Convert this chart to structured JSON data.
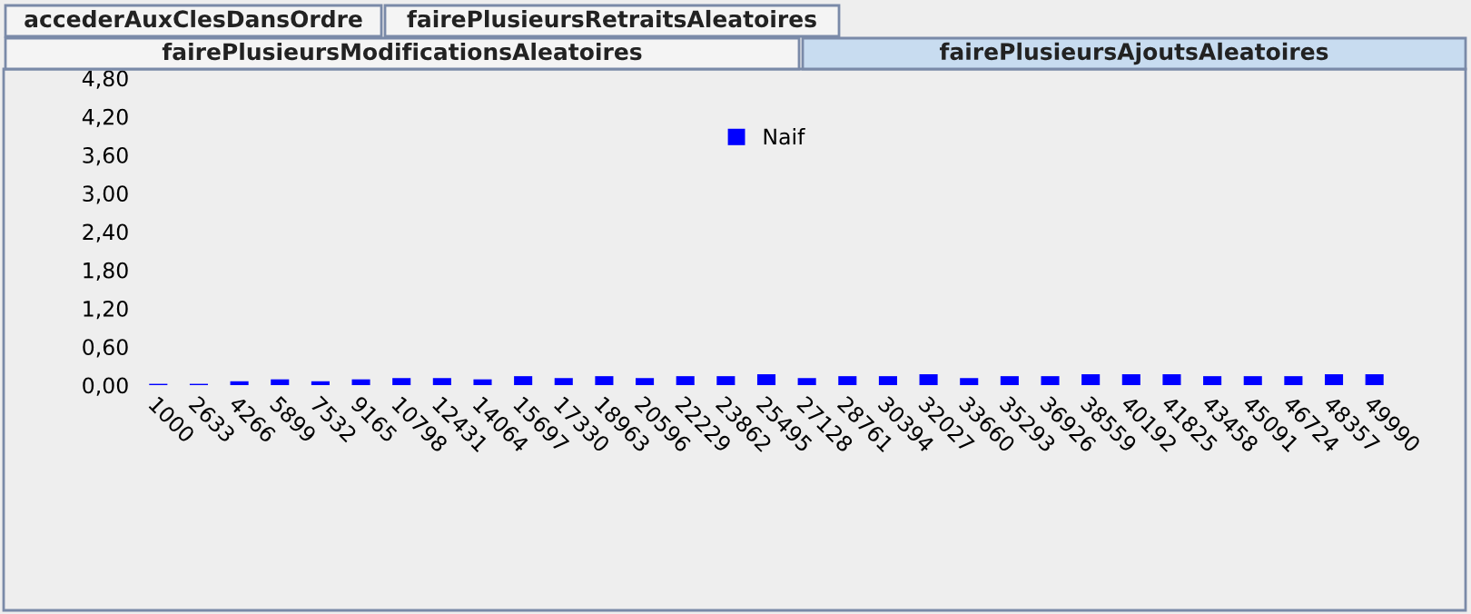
{
  "chart_data": {
    "type": "bar",
    "annotations": [
      "accederAuxClesDansOrdre",
      "fairePlusieursRetraitsAleatoires",
      "fairePlusieursModificationsAleatoires",
      "fairePlusieursAjoutsAleatoires"
    ],
    "categories": [
      "1000",
      "2633",
      "4266",
      "5899",
      "7532",
      "9165",
      "10798",
      "12431",
      "14064",
      "15697",
      "17330",
      "18963",
      "20596",
      "22229",
      "23862",
      "25495",
      "27128",
      "28761",
      "30394",
      "32027",
      "33660",
      "35293",
      "36926",
      "38559",
      "40192",
      "41825",
      "43458",
      "45091",
      "46724",
      "48357",
      "49990"
    ],
    "series": [
      {
        "name": "Naif",
        "color": "#0000ff",
        "values": [
          0.02,
          0.02,
          0.06,
          0.09,
          0.06,
          0.09,
          0.11,
          0.11,
          0.09,
          0.14,
          0.11,
          0.14,
          0.11,
          0.14,
          0.14,
          0.17,
          0.11,
          0.14,
          0.14,
          0.17,
          0.11,
          0.14,
          0.14,
          0.17,
          0.17,
          0.17,
          0.14,
          0.14,
          0.14,
          0.17,
          0.17
        ]
      }
    ],
    "ylim": [
      0,
      4.8
    ],
    "yticks": [
      {
        "value": 0,
        "label": "0,00"
      },
      {
        "value": 0.6,
        "label": "0,60"
      },
      {
        "value": 1.2,
        "label": "1,20"
      },
      {
        "value": 1.8,
        "label": "1,80"
      },
      {
        "value": 2.4,
        "label": "2,40"
      },
      {
        "value": 3.0,
        "label": "3,00"
      },
      {
        "value": 3.6,
        "label": "3,60"
      },
      {
        "value": 4.2,
        "label": "4,20"
      },
      {
        "value": 4.8,
        "label": "4,80"
      }
    ],
    "legend": "top",
    "grid": false
  }
}
